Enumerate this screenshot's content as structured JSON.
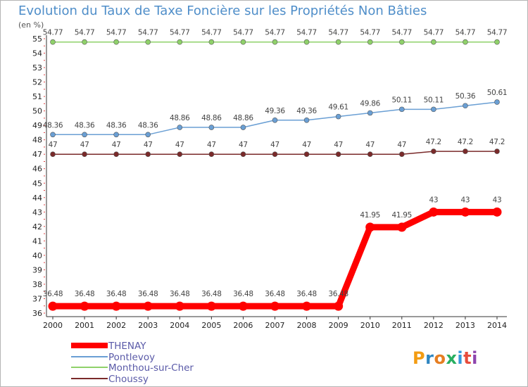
{
  "chart_data": {
    "type": "line",
    "title": "Evolution du Taux de Taxe Foncière sur les Propriétés Non Bâties",
    "ylabel": "(en %)",
    "xlabel": "",
    "ylim": [
      36,
      55
    ],
    "grid": false,
    "legend_position": "bottom-left",
    "categories": [
      "2000",
      "2001",
      "2002",
      "2003",
      "2004",
      "2005",
      "2006",
      "2007",
      "2008",
      "2009",
      "2010",
      "2011",
      "2012",
      "2013",
      "2014"
    ],
    "series": [
      {
        "name": "THENAY",
        "color": "#ff0000",
        "values": [
          36.48,
          36.48,
          36.48,
          36.48,
          36.48,
          36.48,
          36.48,
          36.48,
          36.48,
          36.48,
          41.95,
          41.95,
          43,
          43,
          43
        ],
        "labels": [
          "36.48",
          "36.48",
          "36.48",
          "36.48",
          "36.48",
          "36.48",
          "36.48",
          "36.48",
          "36.48",
          "36.48",
          "41.95",
          "41.95",
          "43",
          "43",
          "43"
        ]
      },
      {
        "name": "Pontlevoy",
        "color": "#6a9fd4",
        "values": [
          48.36,
          48.36,
          48.36,
          48.36,
          48.86,
          48.86,
          48.86,
          49.36,
          49.36,
          49.61,
          49.86,
          50.11,
          50.11,
          50.36,
          50.61
        ],
        "labels": [
          "48.36",
          "48.36",
          "48.36",
          "48.36",
          "48.86",
          "48.86",
          "48.86",
          "49.36",
          "49.36",
          "49.61",
          "49.86",
          "50.11",
          "50.11",
          "50.36",
          "50.61"
        ]
      },
      {
        "name": "Monthou-sur-Cher",
        "color": "#8fd16a",
        "values": [
          54.77,
          54.77,
          54.77,
          54.77,
          54.77,
          54.77,
          54.77,
          54.77,
          54.77,
          54.77,
          54.77,
          54.77,
          54.77,
          54.77,
          54.77
        ],
        "labels": [
          "54.77",
          "54.77",
          "54.77",
          "54.77",
          "54.77",
          "54.77",
          "54.77",
          "54.77",
          "54.77",
          "54.77",
          "54.77",
          "54.77",
          "54.77",
          "54.77",
          "54.77"
        ]
      },
      {
        "name": "Choussy",
        "color": "#7a2a2a",
        "values": [
          47,
          47,
          47,
          47,
          47,
          47,
          47,
          47,
          47,
          47,
          47,
          47,
          47.2,
          47.2,
          47.2
        ],
        "labels": [
          "47",
          "47",
          "47",
          "47",
          "47",
          "47",
          "47",
          "47",
          "47",
          "47",
          "47",
          "47",
          "47.2",
          "47.2",
          "47.2"
        ]
      }
    ],
    "yticks": [
      "36",
      "37",
      "38",
      "39",
      "40",
      "41",
      "42",
      "43",
      "44",
      "45",
      "46",
      "47",
      "48",
      "49",
      "50",
      "51",
      "52",
      "53",
      "54",
      "55"
    ]
  },
  "logo": {
    "text": "Proxiti"
  }
}
